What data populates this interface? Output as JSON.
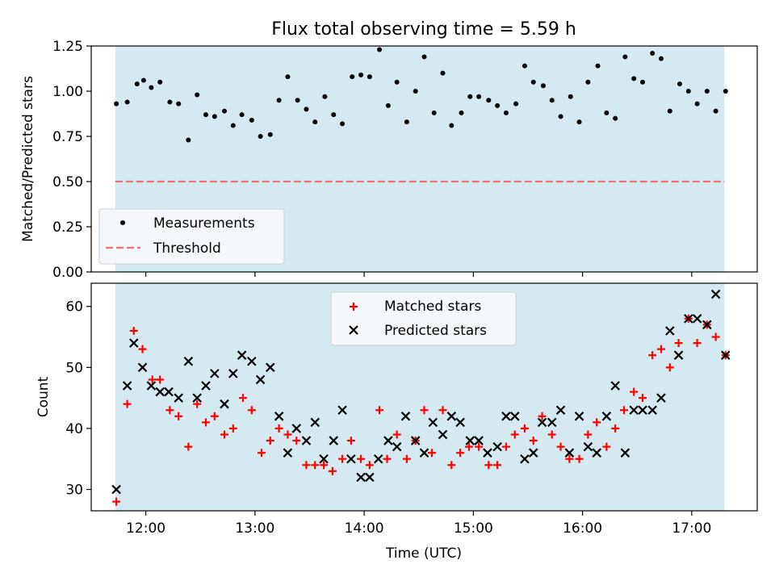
{
  "chart_data": [
    {
      "type": "scatter",
      "title": "Flux total observing time = 5.59 h",
      "xlabel": "",
      "ylabel": "Matched/Predicted stars",
      "xlim": [
        11.5,
        17.6
      ],
      "ylim": [
        0.0,
        1.25
      ],
      "yticks": [
        "0.00",
        "0.25",
        "0.50",
        "0.75",
        "1.00",
        "1.25"
      ],
      "shaded_span": [
        11.72,
        17.3
      ],
      "threshold": 0.5,
      "legend": {
        "position": "lower-left",
        "entries": [
          "Measurements",
          "Threshold"
        ]
      },
      "series": [
        {
          "name": "Measurements",
          "x": [
            11.73,
            11.83,
            11.92,
            11.98,
            12.05,
            12.13,
            12.22,
            12.3,
            12.39,
            12.47,
            12.55,
            12.63,
            12.72,
            12.8,
            12.88,
            12.97,
            13.05,
            13.14,
            13.22,
            13.3,
            13.39,
            13.47,
            13.55,
            13.64,
            13.72,
            13.8,
            13.89,
            13.97,
            14.05,
            14.14,
            14.22,
            14.3,
            14.39,
            14.47,
            14.55,
            14.64,
            14.72,
            14.8,
            14.89,
            14.97,
            15.05,
            15.14,
            15.22,
            15.3,
            15.39,
            15.47,
            15.55,
            15.64,
            15.72,
            15.8,
            15.89,
            15.97,
            16.05,
            16.14,
            16.22,
            16.3,
            16.39,
            16.47,
            16.55,
            16.64,
            16.72,
            16.8,
            16.89,
            16.97,
            17.05,
            17.14,
            17.22,
            17.31
          ],
          "y": [
            0.93,
            0.94,
            1.04,
            1.06,
            1.02,
            1.05,
            0.94,
            0.93,
            0.73,
            0.98,
            0.87,
            0.86,
            0.89,
            0.81,
            0.87,
            0.84,
            0.75,
            0.76,
            0.95,
            1.08,
            0.95,
            0.9,
            0.83,
            0.97,
            0.87,
            0.82,
            1.08,
            1.09,
            1.08,
            1.23,
            0.92,
            1.05,
            0.83,
            1.0,
            1.19,
            0.88,
            1.1,
            0.81,
            0.88,
            0.97,
            0.97,
            0.95,
            0.92,
            0.88,
            0.93,
            1.14,
            1.05,
            1.03,
            0.95,
            0.86,
            0.97,
            0.83,
            1.05,
            1.14,
            0.88,
            0.85,
            1.19,
            1.07,
            1.05,
            1.21,
            1.18,
            0.89,
            1.04,
            1.0,
            0.93,
            1.0,
            0.89,
            1.0
          ]
        }
      ]
    },
    {
      "type": "scatter",
      "title": "",
      "xlabel": "Time (UTC)",
      "ylabel": "Count",
      "xlim": [
        11.5,
        17.6
      ],
      "ylim": [
        26.5,
        63.8
      ],
      "yticks": [
        "30",
        "40",
        "50",
        "60"
      ],
      "xtick_values": [
        12,
        13,
        14,
        15,
        16,
        17
      ],
      "xticks": [
        "12:00",
        "13:00",
        "14:00",
        "15:00",
        "16:00",
        "17:00"
      ],
      "shaded_span": [
        11.72,
        17.3
      ],
      "legend": {
        "position": "top-center",
        "entries": [
          "Matched stars",
          "Predicted stars"
        ]
      },
      "series": [
        {
          "name": "Matched stars",
          "x": [
            11.73,
            11.83,
            11.89,
            11.97,
            12.06,
            12.13,
            12.22,
            12.3,
            12.39,
            12.47,
            12.55,
            12.63,
            12.72,
            12.8,
            12.89,
            12.97,
            13.06,
            13.14,
            13.22,
            13.3,
            13.38,
            13.47,
            13.55,
            13.63,
            13.71,
            13.8,
            13.88,
            13.97,
            14.05,
            14.14,
            14.21,
            14.3,
            14.39,
            14.47,
            14.55,
            14.62,
            14.72,
            14.8,
            14.88,
            14.96,
            15.05,
            15.14,
            15.22,
            15.3,
            15.38,
            15.47,
            15.55,
            15.63,
            15.72,
            15.8,
            15.88,
            15.97,
            16.05,
            16.13,
            16.22,
            16.3,
            16.38,
            16.47,
            16.55,
            16.64,
            16.72,
            16.8,
            16.88,
            16.97,
            17.05,
            17.14,
            17.22,
            17.31
          ],
          "y": [
            28,
            44,
            56,
            53,
            48,
            48,
            43,
            42,
            37,
            44,
            41,
            42,
            39,
            40,
            45,
            43,
            36,
            38,
            40,
            39,
            38,
            34,
            34,
            34,
            33,
            35,
            38,
            35,
            34,
            43,
            35,
            39,
            35,
            38,
            43,
            36,
            43,
            34,
            36,
            37,
            37,
            34,
            34,
            37,
            39,
            40,
            38,
            42,
            39,
            37,
            35,
            35,
            39,
            41,
            37,
            40,
            43,
            46,
            45,
            52,
            53,
            50,
            54,
            58,
            54,
            57,
            55,
            52
          ]
        },
        {
          "name": "Predicted stars",
          "x": [
            11.73,
            11.83,
            11.89,
            11.97,
            12.05,
            12.13,
            12.21,
            12.3,
            12.39,
            12.47,
            12.55,
            12.63,
            12.72,
            12.8,
            12.88,
            12.97,
            13.05,
            13.14,
            13.22,
            13.3,
            13.38,
            13.47,
            13.55,
            13.63,
            13.72,
            13.8,
            13.88,
            13.97,
            14.05,
            14.13,
            14.22,
            14.3,
            14.38,
            14.47,
            14.55,
            14.63,
            14.72,
            14.8,
            14.88,
            14.97,
            15.05,
            15.13,
            15.22,
            15.3,
            15.38,
            15.47,
            15.55,
            15.63,
            15.72,
            15.8,
            15.88,
            15.97,
            16.05,
            16.13,
            16.22,
            16.3,
            16.39,
            16.47,
            16.55,
            16.64,
            16.72,
            16.8,
            16.88,
            16.97,
            17.05,
            17.14,
            17.22,
            17.31
          ],
          "y": [
            30,
            47,
            54,
            50,
            47,
            46,
            46,
            45,
            51,
            45,
            47,
            49,
            44,
            49,
            52,
            51,
            48,
            50,
            42,
            36,
            40,
            38,
            41,
            35,
            38,
            43,
            35,
            32,
            32,
            35,
            38,
            37,
            42,
            38,
            36,
            41,
            39,
            42,
            41,
            38,
            38,
            36,
            37,
            42,
            42,
            35,
            36,
            41,
            41,
            43,
            36,
            42,
            37,
            36,
            42,
            47,
            36,
            43,
            43,
            43,
            45,
            56,
            52,
            58,
            58,
            57,
            62,
            52
          ]
        }
      ]
    }
  ]
}
